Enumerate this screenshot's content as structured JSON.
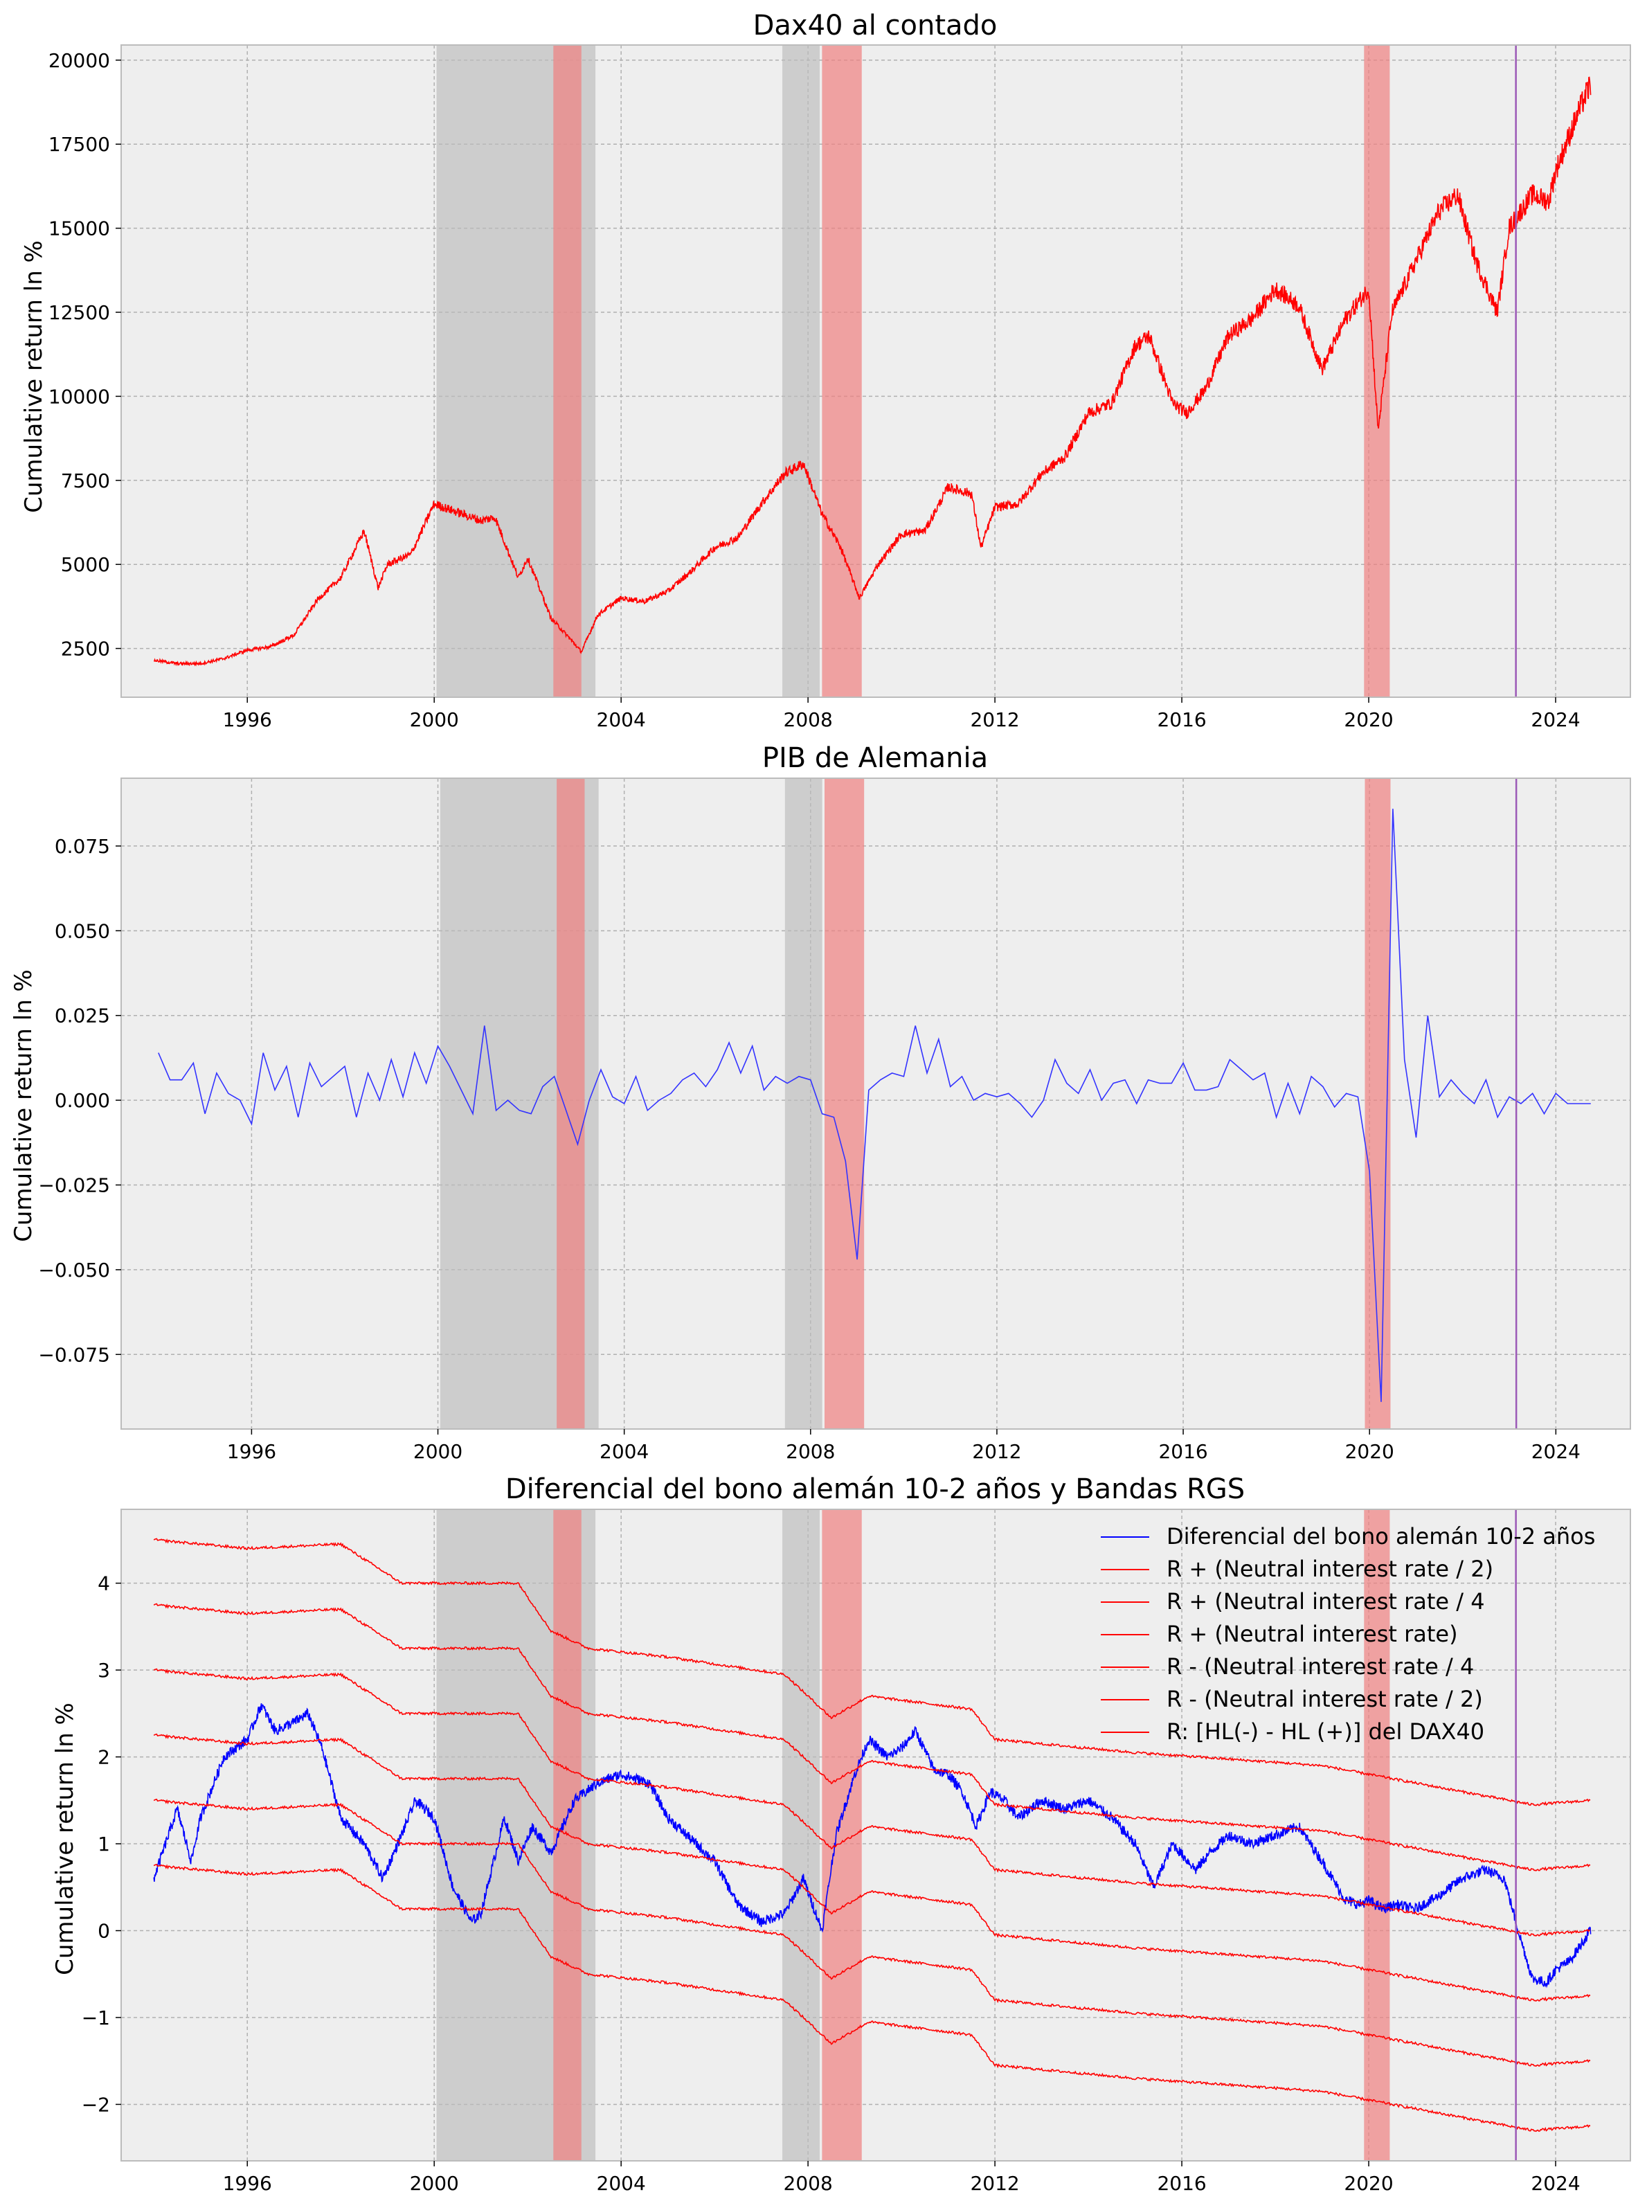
{
  "chart_data": [
    {
      "type": "line",
      "title": "Dax40 al contado",
      "ylabel": "Cumulative return ln %",
      "xlabel": "",
      "xlim": [
        1993.3,
        2025.6
      ],
      "ylim": [
        1050,
        20450
      ],
      "grid": true,
      "x_ticks": [
        1996,
        2000,
        2004,
        2008,
        2012,
        2016,
        2020,
        2024
      ],
      "x_tick_labels": [
        "1996",
        "2000",
        "2004",
        "2008",
        "2012",
        "2016",
        "2020",
        "2024"
      ],
      "y_ticks": [
        2500,
        5000,
        7500,
        10000,
        12500,
        15000,
        17500,
        20000
      ],
      "y_tick_labels": [
        "2500",
        "5000",
        "7500",
        "10000",
        "12500",
        "15000",
        "17500",
        "20000"
      ],
      "shaded_periods": [
        {
          "start": 2000.05,
          "end": 2003.45,
          "color": "#bbbbbb",
          "opacity": 0.65
        },
        {
          "start": 2007.45,
          "end": 2008.25,
          "color": "#bbbbbb",
          "opacity": 0.65
        },
        {
          "start": 2002.55,
          "end": 2003.15,
          "color": "#f08080",
          "opacity": 0.7
        },
        {
          "start": 2008.3,
          "end": 2009.15,
          "color": "#f08080",
          "opacity": 0.7
        },
        {
          "start": 2019.9,
          "end": 2020.45,
          "color": "#f08080",
          "opacity": 0.7
        }
      ],
      "vertical_lines": [
        {
          "x": 2023.15,
          "color": "#9b59b6"
        }
      ],
      "series": [
        {
          "name": "Dax40",
          "color": "#ff0000",
          "x": [
            1994.0,
            1994.5,
            1995.0,
            1995.5,
            1996.0,
            1996.5,
            1997.0,
            1997.5,
            1998.0,
            1998.5,
            1998.8,
            1999.0,
            1999.5,
            2000.0,
            2000.1,
            2001.0,
            2001.3,
            2001.8,
            2002.0,
            2002.5,
            2002.9,
            2003.15,
            2003.5,
            2004.0,
            2004.5,
            2005.0,
            2005.5,
            2006.0,
            2006.5,
            2007.0,
            2007.5,
            2007.9,
            2008.3,
            2008.7,
            2009.1,
            2009.5,
            2010.0,
            2010.5,
            2011.0,
            2011.5,
            2011.7,
            2012.0,
            2012.5,
            2013.0,
            2013.5,
            2014.0,
            2014.5,
            2015.0,
            2015.3,
            2015.8,
            2016.1,
            2016.5,
            2017.0,
            2017.5,
            2018.0,
            2018.5,
            2019.0,
            2019.5,
            2020.0,
            2020.2,
            2020.5,
            2021.0,
            2021.5,
            2021.9,
            2022.3,
            2022.75,
            2023.0,
            2023.5,
            2023.85,
            2024.0,
            2024.5,
            2024.75
          ],
          "values": [
            2150,
            2050,
            2050,
            2200,
            2450,
            2550,
            2900,
            3950,
            4600,
            6000,
            4300,
            5000,
            5300,
            6800,
            6750,
            6300,
            6400,
            4600,
            5200,
            3400,
            2800,
            2400,
            3500,
            4000,
            3900,
            4200,
            4800,
            5500,
            5800,
            6800,
            7700,
            8000,
            6500,
            5500,
            4000,
            5000,
            5900,
            6000,
            7300,
            7100,
            5500,
            6700,
            6800,
            7700,
            8200,
            9500,
            9800,
            11500,
            11800,
            9800,
            9500,
            10200,
            11800,
            12300,
            13200,
            12700,
            10800,
            12300,
            13200,
            9000,
            12500,
            14000,
            15500,
            16000,
            14000,
            12500,
            15000,
            16000,
            15800,
            16700,
            18500,
            19300
          ]
        }
      ]
    },
    {
      "type": "line",
      "title": "PIB de Alemania",
      "ylabel": "Cumulative return ln %",
      "xlabel": "",
      "xlim": [
        1993.2,
        2025.6
      ],
      "ylim": [
        -0.097,
        0.095
      ],
      "grid": true,
      "x_ticks": [
        1996,
        2000,
        2004,
        2008,
        2012,
        2016,
        2020,
        2024
      ],
      "x_tick_labels": [
        "1996",
        "2000",
        "2004",
        "2008",
        "2012",
        "2016",
        "2020",
        "2024"
      ],
      "y_ticks": [
        -0.075,
        -0.05,
        -0.025,
        0.0,
        0.025,
        0.05,
        0.075
      ],
      "y_tick_labels": [
        "−0.075",
        "−0.050",
        "−0.025",
        "0.000",
        "0.025",
        "0.050",
        "0.075"
      ],
      "shaded_periods": [
        {
          "start": 2000.05,
          "end": 2003.45,
          "color": "#bbbbbb",
          "opacity": 0.65
        },
        {
          "start": 2007.45,
          "end": 2008.25,
          "color": "#bbbbbb",
          "opacity": 0.65
        },
        {
          "start": 2002.55,
          "end": 2003.15,
          "color": "#f08080",
          "opacity": 0.7
        },
        {
          "start": 2008.3,
          "end": 2009.15,
          "color": "#f08080",
          "opacity": 0.7
        },
        {
          "start": 2019.9,
          "end": 2020.45,
          "color": "#f08080",
          "opacity": 0.7
        }
      ],
      "vertical_lines": [
        {
          "x": 2023.15,
          "color": "#9b59b6"
        }
      ],
      "series": [
        {
          "name": "PIB",
          "color": "#3333ff",
          "x": [
            1994.0,
            1994.25,
            1994.5,
            1994.75,
            1995.0,
            1995.25,
            1995.5,
            1995.75,
            1996.0,
            1996.25,
            1996.5,
            1996.75,
            1997.0,
            1997.25,
            1997.5,
            1997.75,
            1998.0,
            1998.25,
            1998.5,
            1998.75,
            1999.0,
            1999.25,
            1999.5,
            1999.75,
            2000.0,
            2000.25,
            2000.5,
            2000.75,
            2001.0,
            2001.25,
            2001.5,
            2001.75,
            2002.0,
            2002.25,
            2002.5,
            2002.75,
            2003.0,
            2003.25,
            2003.5,
            2003.75,
            2004.0,
            2004.25,
            2004.5,
            2004.75,
            2005.0,
            2005.25,
            2005.5,
            2005.75,
            2006.0,
            2006.25,
            2006.5,
            2006.75,
            2007.0,
            2007.25,
            2007.5,
            2007.75,
            2008.0,
            2008.25,
            2008.5,
            2008.75,
            2009.0,
            2009.25,
            2009.5,
            2009.75,
            2010.0,
            2010.25,
            2010.5,
            2010.75,
            2011.0,
            2011.25,
            2011.5,
            2011.75,
            2012.0,
            2012.25,
            2012.5,
            2012.75,
            2013.0,
            2013.25,
            2013.5,
            2013.75,
            2014.0,
            2014.25,
            2014.5,
            2014.75,
            2015.0,
            2015.25,
            2015.5,
            2015.75,
            2016.0,
            2016.25,
            2016.5,
            2016.75,
            2017.0,
            2017.25,
            2017.5,
            2017.75,
            2018.0,
            2018.25,
            2018.5,
            2018.75,
            2019.0,
            2019.25,
            2019.5,
            2019.75,
            2020.0,
            2020.25,
            2020.5,
            2020.75,
            2021.0,
            2021.25,
            2021.5,
            2021.75,
            2022.0,
            2022.25,
            2022.5,
            2022.75,
            2023.0,
            2023.25,
            2023.5,
            2023.75,
            2024.0,
            2024.25,
            2024.5,
            2024.75
          ],
          "values": [
            0.014,
            0.006,
            0.006,
            0.011,
            -0.004,
            0.008,
            0.002,
            0.0,
            -0.007,
            0.014,
            0.003,
            0.01,
            -0.005,
            0.011,
            0.004,
            0.007,
            0.01,
            -0.005,
            0.008,
            0.0,
            0.012,
            0.001,
            0.014,
            0.005,
            0.016,
            0.01,
            0.003,
            -0.004,
            0.022,
            -0.003,
            0.0,
            -0.003,
            -0.004,
            0.004,
            0.007,
            -0.003,
            -0.013,
            0.0,
            0.009,
            0.001,
            -0.001,
            0.007,
            -0.003,
            0.0,
            0.002,
            0.006,
            0.008,
            0.004,
            0.009,
            0.017,
            0.008,
            0.016,
            0.003,
            0.007,
            0.005,
            0.007,
            0.006,
            -0.004,
            -0.005,
            -0.018,
            -0.047,
            0.003,
            0.006,
            0.008,
            0.007,
            0.022,
            0.008,
            0.018,
            0.004,
            0.007,
            0.0,
            0.002,
            0.001,
            0.002,
            -0.001,
            -0.005,
            0.0,
            0.012,
            0.005,
            0.002,
            0.009,
            0.0,
            0.005,
            0.006,
            -0.001,
            0.006,
            0.005,
            0.005,
            0.011,
            0.003,
            0.003,
            0.004,
            0.012,
            0.009,
            0.006,
            0.008,
            -0.005,
            0.005,
            -0.004,
            0.007,
            0.004,
            -0.002,
            0.002,
            0.001,
            -0.021,
            -0.089,
            0.086,
            0.012,
            -0.011,
            0.025,
            0.001,
            0.006,
            0.002,
            -0.001,
            0.006,
            -0.005,
            0.001,
            -0.001,
            0.002,
            -0.004,
            0.002,
            -0.001,
            -0.001,
            -0.001
          ]
        }
      ]
    },
    {
      "type": "line",
      "title": "Diferencial del bono alemán 10-2 años y Bandas RGS",
      "ylabel": "Cumulative return ln %",
      "xlabel": "",
      "xlim": [
        1993.3,
        2025.6
      ],
      "ylim": [
        -2.65,
        4.85
      ],
      "grid": true,
      "x_ticks": [
        1996,
        2000,
        2004,
        2008,
        2012,
        2016,
        2020,
        2024
      ],
      "x_tick_labels": [
        "1996",
        "2000",
        "2004",
        "2008",
        "2012",
        "2016",
        "2020",
        "2024"
      ],
      "y_ticks": [
        -2,
        -1,
        0,
        1,
        2,
        3,
        4
      ],
      "y_tick_labels": [
        "−2",
        "−1",
        "0",
        "1",
        "2",
        "3",
        "4"
      ],
      "legend_position": "top-right",
      "shaded_periods": [
        {
          "start": 2000.05,
          "end": 2003.45,
          "color": "#bbbbbb",
          "opacity": 0.65
        },
        {
          "start": 2007.45,
          "end": 2008.25,
          "color": "#bbbbbb",
          "opacity": 0.65
        },
        {
          "start": 2002.55,
          "end": 2003.15,
          "color": "#f08080",
          "opacity": 0.7
        },
        {
          "start": 2008.3,
          "end": 2009.15,
          "color": "#f08080",
          "opacity": 0.7
        },
        {
          "start": 2019.9,
          "end": 2020.45,
          "color": "#f08080",
          "opacity": 0.7
        }
      ],
      "vertical_lines": [
        {
          "x": 2023.15,
          "color": "#9b59b6"
        }
      ],
      "band_base": {
        "x": [
          1994.0,
          1996.0,
          1998.0,
          1999.3,
          2000.0,
          2001.8,
          2002.5,
          2003.3,
          2005.0,
          2007.5,
          2008.5,
          2009.3,
          2011.5,
          2012.0,
          2015.0,
          2019.0,
          2020.0,
          2022.5,
          2023.5,
          2024.75
        ],
        "values": [
          0.75,
          0.65,
          0.7,
          0.25,
          0.25,
          0.25,
          -0.3,
          -0.5,
          -0.6,
          -0.8,
          -1.3,
          -1.05,
          -1.2,
          -1.55,
          -1.7,
          -1.85,
          -1.95,
          -2.2,
          -2.3,
          -2.25
        ]
      },
      "series": [
        {
          "name": "Diferencial del bono alemán 10-2 años",
          "color": "#0000ff",
          "x": [
            1994.0,
            1994.5,
            1994.8,
            1995.0,
            1995.5,
            1996.0,
            1996.3,
            1996.6,
            1997.0,
            1997.3,
            1997.6,
            1998.0,
            1998.5,
            1998.9,
            1999.3,
            1999.6,
            2000.0,
            2000.4,
            2000.8,
            2001.0,
            2001.5,
            2001.8,
            2002.1,
            2002.5,
            2003.0,
            2003.5,
            2004.0,
            2004.3,
            2004.6,
            2005.0,
            2005.5,
            2006.0,
            2006.5,
            2007.0,
            2007.5,
            2007.9,
            2008.3,
            2008.6,
            2009.0,
            2009.3,
            2009.7,
            2010.0,
            2010.3,
            2010.7,
            2011.0,
            2011.3,
            2011.6,
            2011.9,
            2012.2,
            2012.5,
            2013.0,
            2013.5,
            2014.0,
            2014.5,
            2015.0,
            2015.4,
            2015.8,
            2016.3,
            2016.6,
            2017.0,
            2017.5,
            2018.0,
            2018.5,
            2019.0,
            2019.5,
            2019.8,
            2020.0,
            2020.3,
            2020.6,
            2021.0,
            2021.5,
            2022.0,
            2022.5,
            2022.9,
            2023.2,
            2023.5,
            2023.8,
            2024.0,
            2024.3,
            2024.75
          ],
          "values": [
            0.6,
            1.4,
            0.8,
            1.3,
            2.0,
            2.2,
            2.6,
            2.3,
            2.4,
            2.5,
            2.1,
            1.3,
            1.0,
            0.6,
            1.1,
            1.5,
            1.3,
            0.5,
            0.1,
            0.2,
            1.3,
            0.8,
            1.2,
            0.9,
            1.5,
            1.7,
            1.8,
            1.75,
            1.7,
            1.3,
            1.05,
            0.8,
            0.3,
            0.1,
            0.2,
            0.6,
            0.0,
            1.1,
            1.8,
            2.2,
            2.0,
            2.1,
            2.3,
            1.85,
            1.8,
            1.6,
            1.2,
            1.6,
            1.5,
            1.3,
            1.5,
            1.4,
            1.5,
            1.3,
            1.0,
            0.5,
            1.0,
            0.7,
            0.9,
            1.1,
            1.0,
            1.1,
            1.2,
            0.8,
            0.35,
            0.3,
            0.35,
            0.25,
            0.3,
            0.25,
            0.4,
            0.6,
            0.7,
            0.6,
            0.0,
            -0.55,
            -0.6,
            -0.45,
            -0.35,
            0.0
          ]
        },
        {
          "name": "R + (Neutral interest rate / 2)",
          "color": "#ff0000",
          "offset": 3.0
        },
        {
          "name": "R + (Neutral interest rate / 4",
          "color": "#ff0000",
          "offset": 2.25
        },
        {
          "name": "R + (Neutral interest rate)",
          "color": "#ff0000",
          "offset": 3.75
        },
        {
          "name": "R - (Neutral interest rate / 4",
          "color": "#ff0000",
          "offset": 0.75
        },
        {
          "name": "R - (Neutral interest rate / 2)",
          "color": "#ff0000",
          "offset": 1.5
        },
        {
          "name": "R: [HL(-) - HL (+)] del DAX40",
          "color": "#ff0000",
          "offset": 0.0
        }
      ]
    }
  ],
  "colors": {
    "figure_bg": "#ffffff",
    "axes_bg": "#eeeeee",
    "grid": "#b0b0b0",
    "spine": "#bcbcbc"
  }
}
